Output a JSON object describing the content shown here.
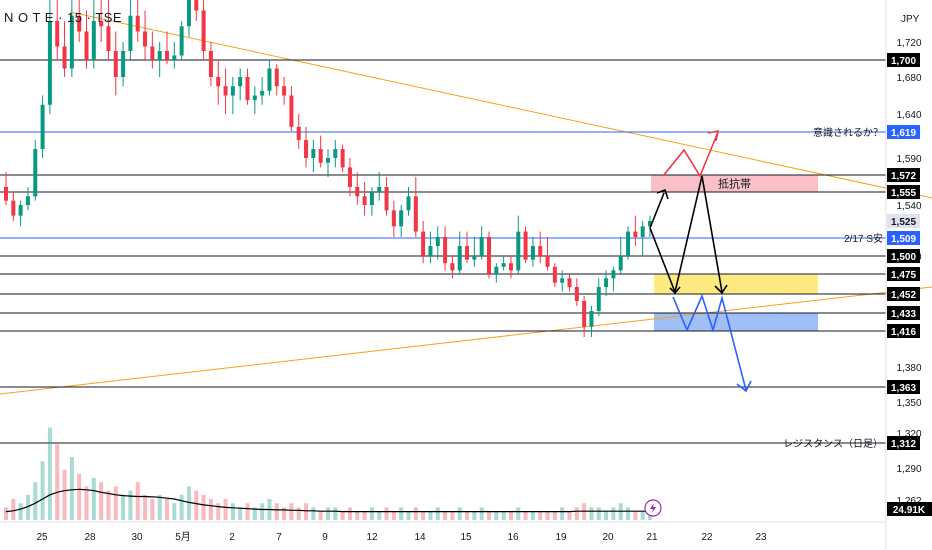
{
  "header": {
    "symbol_text": "N O T E · 15 · TSE",
    "currency": "JPY"
  },
  "colors": {
    "up": "#089981",
    "down": "#f23645",
    "hline": "#131722",
    "blue_line": "#2962ff",
    "trendline": "#f7a21b",
    "resist_zone": "#f8b6bd",
    "support_zone": "#ffe66b",
    "lower_zone": "#8fb4f5",
    "ma_line": "#000000",
    "red_arrow": "#f23645",
    "black_arrow": "#000000",
    "blue_arrow": "#2962ff"
  },
  "chart_data": {
    "type": "candlestick",
    "y_axis_ticks": [
      "1,720",
      "1,680",
      "1,640",
      "1,590",
      "1,540",
      "1,500",
      "1,380",
      "1,350",
      "1,320",
      "1,290",
      "1,262"
    ],
    "y_axis_tick_values": [
      1720,
      1680,
      1640,
      1590,
      1540,
      1500,
      1380,
      1350,
      1320,
      1290,
      1262
    ],
    "x_axis_ticks": [
      "25",
      "28",
      "30",
      "5月",
      "2",
      "7",
      "9",
      "12",
      "14",
      "15",
      "16",
      "19",
      "20",
      "21",
      "22",
      "23"
    ],
    "horizontal_levels": [
      {
        "value": 1700,
        "label": "1,700",
        "color": "hline"
      },
      {
        "value": 1619,
        "label": "1,619",
        "color": "blue_line",
        "annotation": "意識されるか？"
      },
      {
        "value": 1572,
        "label": "1,572",
        "color": "hline"
      },
      {
        "value": 1555,
        "label": "1,555",
        "color": "hline"
      },
      {
        "value": 1525,
        "label": "1,525",
        "color": "gray"
      },
      {
        "value": 1509,
        "label": "1,509",
        "color": "blue_line",
        "annotation": "2/17 S安"
      },
      {
        "value": 1500,
        "label": "1,500",
        "color": "hline"
      },
      {
        "value": 1475,
        "label": "1,475",
        "color": "hline"
      },
      {
        "value": 1452,
        "label": "1,452",
        "color": "hline"
      },
      {
        "value": 1433,
        "label": "1,433",
        "color": "hline"
      },
      {
        "value": 1416,
        "label": "1,416",
        "color": "hline"
      },
      {
        "value": 1363,
        "label": "1,363",
        "color": "hline"
      },
      {
        "value": 1312,
        "label": "1,312",
        "color": "hline",
        "annotation": "レジスタンス（日足）"
      }
    ],
    "zones": [
      {
        "name": "resistance",
        "label": "抵抗帯",
        "top": 1572,
        "bottom": 1555
      },
      {
        "name": "support",
        "label": "",
        "top": 1475,
        "bottom": 1452
      },
      {
        "name": "lower",
        "label": "",
        "top": 1433,
        "bottom": 1416
      }
    ],
    "volume_badge": "24.91K",
    "candles": [
      [
        1560,
        1575,
        1540,
        1545
      ],
      [
        1545,
        1555,
        1525,
        1530
      ],
      [
        1530,
        1545,
        1520,
        1540
      ],
      [
        1540,
        1560,
        1535,
        1550
      ],
      [
        1550,
        1610,
        1545,
        1600
      ],
      [
        1600,
        1660,
        1590,
        1650
      ],
      [
        1650,
        1760,
        1640,
        1740
      ],
      [
        1740,
        1780,
        1700,
        1715
      ],
      [
        1715,
        1740,
        1680,
        1690
      ],
      [
        1690,
        1760,
        1680,
        1745
      ],
      [
        1745,
        1790,
        1720,
        1730
      ],
      [
        1730,
        1750,
        1690,
        1700
      ],
      [
        1700,
        1760,
        1690,
        1740
      ],
      [
        1740,
        1770,
        1720,
        1735
      ],
      [
        1735,
        1760,
        1700,
        1710
      ],
      [
        1710,
        1730,
        1660,
        1680
      ],
      [
        1680,
        1720,
        1670,
        1710
      ],
      [
        1710,
        1760,
        1700,
        1745
      ],
      [
        1745,
        1780,
        1720,
        1730
      ],
      [
        1730,
        1750,
        1700,
        1715
      ],
      [
        1715,
        1730,
        1690,
        1700
      ],
      [
        1700,
        1720,
        1680,
        1710
      ],
      [
        1710,
        1730,
        1695,
        1700
      ],
      [
        1700,
        1720,
        1690,
        1705
      ],
      [
        1705,
        1740,
        1700,
        1735
      ],
      [
        1735,
        1770,
        1725,
        1760
      ],
      [
        1760,
        1780,
        1740,
        1750
      ],
      [
        1750,
        1760,
        1700,
        1710
      ],
      [
        1710,
        1720,
        1670,
        1680
      ],
      [
        1680,
        1700,
        1650,
        1670
      ],
      [
        1670,
        1690,
        1640,
        1660
      ],
      [
        1660,
        1680,
        1640,
        1670
      ],
      [
        1670,
        1690,
        1655,
        1680
      ],
      [
        1680,
        1690,
        1650,
        1655
      ],
      [
        1655,
        1670,
        1640,
        1660
      ],
      [
        1660,
        1680,
        1650,
        1665
      ],
      [
        1665,
        1700,
        1660,
        1690
      ],
      [
        1690,
        1695,
        1660,
        1670
      ],
      [
        1670,
        1680,
        1650,
        1660
      ],
      [
        1660,
        1670,
        1620,
        1625
      ],
      [
        1625,
        1640,
        1600,
        1610
      ],
      [
        1610,
        1625,
        1580,
        1590
      ],
      [
        1590,
        1610,
        1575,
        1600
      ],
      [
        1600,
        1615,
        1580,
        1585
      ],
      [
        1585,
        1600,
        1570,
        1590
      ],
      [
        1590,
        1610,
        1580,
        1600
      ],
      [
        1600,
        1605,
        1575,
        1580
      ],
      [
        1580,
        1590,
        1550,
        1560
      ],
      [
        1560,
        1575,
        1540,
        1550
      ],
      [
        1550,
        1565,
        1530,
        1540
      ],
      [
        1540,
        1560,
        1530,
        1555
      ],
      [
        1555,
        1575,
        1545,
        1560
      ],
      [
        1560,
        1570,
        1530,
        1535
      ],
      [
        1535,
        1545,
        1510,
        1520
      ],
      [
        1520,
        1540,
        1510,
        1535
      ],
      [
        1535,
        1560,
        1530,
        1550
      ],
      [
        1550,
        1570,
        1510,
        1515
      ],
      [
        1515,
        1525,
        1490,
        1500
      ],
      [
        1500,
        1515,
        1490,
        1505
      ],
      [
        1505,
        1520,
        1495,
        1510
      ],
      [
        1510,
        1520,
        1480,
        1490
      ],
      [
        1490,
        1500,
        1470,
        1480
      ],
      [
        1480,
        1515,
        1475,
        1505
      ],
      [
        1505,
        1515,
        1490,
        1495
      ],
      [
        1495,
        1510,
        1485,
        1500
      ],
      [
        1500,
        1520,
        1495,
        1510
      ],
      [
        1510,
        1515,
        1470,
        1475
      ],
      [
        1475,
        1490,
        1465,
        1485
      ],
      [
        1485,
        1500,
        1480,
        1490
      ],
      [
        1490,
        1500,
        1470,
        1480
      ],
      [
        1480,
        1530,
        1475,
        1515
      ],
      [
        1515,
        1520,
        1490,
        1495
      ],
      [
        1495,
        1510,
        1485,
        1505
      ],
      [
        1505,
        1515,
        1490,
        1500
      ],
      [
        1500,
        1510,
        1480,
        1485
      ],
      [
        1485,
        1490,
        1460,
        1465
      ],
      [
        1465,
        1480,
        1455,
        1470
      ],
      [
        1470,
        1475,
        1455,
        1460
      ],
      [
        1460,
        1470,
        1440,
        1445
      ],
      [
        1445,
        1450,
        1410,
        1420
      ],
      [
        1420,
        1440,
        1410,
        1435
      ],
      [
        1435,
        1470,
        1430,
        1460
      ],
      [
        1460,
        1480,
        1450,
        1470
      ],
      [
        1470,
        1485,
        1455,
        1480
      ],
      [
        1480,
        1510,
        1475,
        1500
      ],
      [
        1500,
        1520,
        1495,
        1515
      ],
      [
        1515,
        1530,
        1505,
        1510
      ],
      [
        1510,
        1525,
        1500,
        1520
      ],
      [
        1520,
        1530,
        1510,
        1525
      ]
    ],
    "volume": [
      3,
      5,
      4,
      6,
      9,
      14,
      22,
      18,
      12,
      15,
      11,
      8,
      10,
      9,
      7,
      8,
      6,
      7,
      9,
      6,
      5,
      6,
      5,
      4,
      6,
      8,
      7,
      6,
      5,
      4,
      5,
      4,
      3,
      4,
      3,
      4,
      5,
      4,
      3,
      4,
      3,
      4,
      3,
      2,
      3,
      3,
      2,
      3,
      2,
      2,
      3,
      2,
      3,
      2,
      3,
      2,
      3,
      2,
      2,
      3,
      2,
      2,
      3,
      2,
      2,
      3,
      2,
      2,
      2,
      2,
      3,
      2,
      2,
      2,
      2,
      2,
      3,
      2,
      3,
      4,
      3,
      3,
      2,
      3,
      4,
      3,
      2,
      2,
      2
    ],
    "ma": [
      2.0,
      2.2,
      2.6,
      3.2,
      4.0,
      5.0,
      6.0,
      6.6,
      7.0,
      7.2,
      7.3,
      7.2,
      7.0,
      6.6,
      6.3,
      6.0,
      5.8,
      5.7,
      5.6,
      5.6,
      5.5,
      5.4,
      5.2,
      5.0,
      4.6,
      4.2,
      3.9,
      3.6,
      3.4,
      3.2,
      3.0,
      2.9,
      2.8,
      2.7,
      2.6,
      2.5,
      2.5,
      2.4,
      2.4,
      2.3,
      2.3,
      2.2,
      2.2,
      2.1,
      2.1,
      2.1,
      2.0,
      2.0,
      2.0,
      2.0,
      2.0,
      2.0,
      2.0,
      2.0,
      2.0,
      2.0,
      2.0,
      2.0,
      2.0,
      2.0,
      2.0,
      2.0,
      2.0,
      2.0,
      2.0,
      2.0,
      2.0,
      2.0,
      2.0,
      2.0,
      2.0,
      2.0,
      2.0,
      2.0,
      2.0,
      2.0,
      2.0,
      2.0,
      2.1,
      2.1,
      2.1,
      2.1,
      2.1,
      2.1,
      2.1,
      2.1,
      2.1,
      2.1,
      2.1
    ]
  }
}
